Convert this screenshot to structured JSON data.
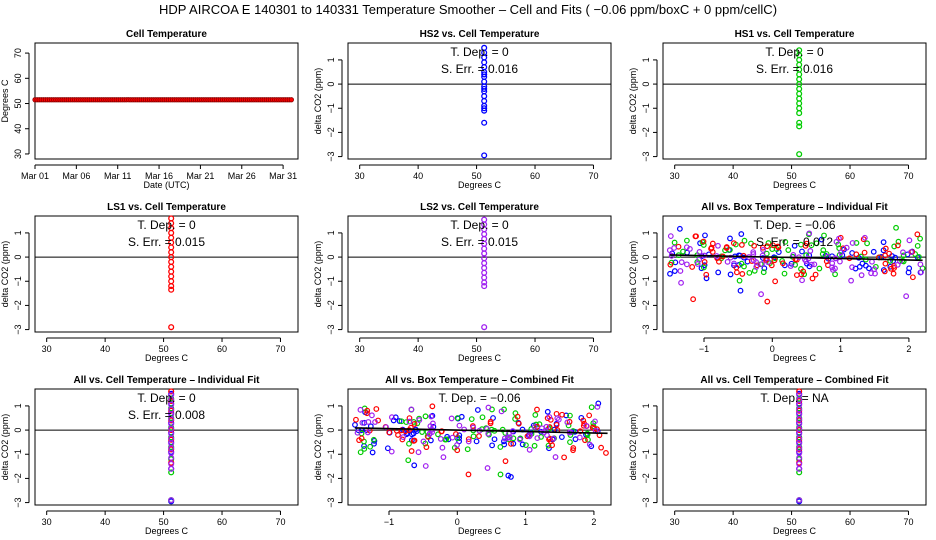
{
  "suptitle": "HDP   AIRCOA E   140301 to 140331   Temperature Smoother – Cell and Fits ( −0.06  ppm/boxC +  0  ppm/cellC)",
  "colors": {
    "red": "#ff0000",
    "blue": "#0000ff",
    "green": "#00cc00",
    "purple": "#a020f0",
    "darkred": "#8b0000"
  },
  "chart_data": [
    {
      "id": "p1",
      "type": "scatter",
      "title": "Cell Temperature",
      "xlabel": "Date (UTC)",
      "ylabel": "Degrees C",
      "xlim": [
        0,
        31.8
      ],
      "ylim": [
        28,
        74
      ],
      "xticks": [
        0,
        5,
        10,
        15,
        20,
        25,
        30
      ],
      "xticklabels": [
        "Mar 01",
        "Mar 06",
        "Mar 11",
        "Mar 16",
        "Mar 21",
        "Mar 26",
        "Mar 31"
      ],
      "yticks": [
        30,
        40,
        50,
        60,
        70
      ],
      "series": [
        {
          "color": "#ff0000",
          "edge": "#8b0000",
          "x_range": [
            0,
            31
          ],
          "y": 51.5,
          "n": 124
        }
      ]
    },
    {
      "id": "p2",
      "type": "scatter",
      "title": "HS2 vs. Cell Temperature",
      "xlabel": "Degrees C",
      "ylabel": "delta CO2 (ppm)",
      "xlim": [
        28,
        73
      ],
      "ylim": [
        -3.1,
        1.7
      ],
      "xticks": [
        30,
        40,
        50,
        60,
        70
      ],
      "yticks": [
        -3,
        -2,
        -1,
        0,
        1
      ],
      "annotations": [
        "T. Dep. =  0",
        "S. Err. =  0.016"
      ],
      "hline": 0,
      "series": [
        {
          "color": "#0000ff",
          "x": 51.3,
          "values": [
            1.5,
            1.3,
            1.1,
            0.9,
            0.7,
            0.5,
            0.3,
            0.1,
            -0.1,
            -0.3,
            -0.5,
            -0.7,
            -0.9,
            -1.1,
            -1.0,
            -0.2,
            0.4,
            -1.6,
            -2.95
          ]
        }
      ]
    },
    {
      "id": "p3",
      "type": "scatter",
      "title": "HS1 vs. Cell Temperature",
      "xlabel": "Degrees C",
      "ylabel": "delta CO2 (ppm)",
      "xlim": [
        28,
        73
      ],
      "ylim": [
        -3.1,
        1.7
      ],
      "xticks": [
        30,
        40,
        50,
        60,
        70
      ],
      "yticks": [
        -3,
        -2,
        -1,
        0,
        1
      ],
      "annotations": [
        "T. Dep. =  0",
        "S. Err. =  0.016"
      ],
      "hline": 0,
      "series": [
        {
          "color": "#00cc00",
          "x": 51.3,
          "values": [
            1.4,
            1.2,
            1.0,
            0.8,
            0.6,
            0.4,
            0.2,
            0.0,
            -0.2,
            -0.4,
            -0.6,
            -0.8,
            -1.0,
            -1.2,
            -1.6,
            -1.75,
            -2.9
          ]
        }
      ]
    },
    {
      "id": "p4",
      "type": "scatter",
      "title": "LS1 vs. Cell Temperature",
      "xlabel": "Degrees C",
      "ylabel": "delta CO2 (ppm)",
      "xlim": [
        28,
        73
      ],
      "ylim": [
        -3.1,
        1.7
      ],
      "xticks": [
        30,
        40,
        50,
        60,
        70
      ],
      "yticks": [
        -3,
        -2,
        -1,
        0,
        1
      ],
      "annotations": [
        "T. Dep. =  0",
        "S. Err. =  0.015"
      ],
      "hline": 0,
      "series": [
        {
          "color": "#ff0000",
          "x": 51.3,
          "values": [
            1.6,
            1.4,
            1.2,
            1.0,
            0.8,
            0.6,
            0.4,
            0.2,
            0.0,
            -0.2,
            -0.4,
            -0.6,
            -0.8,
            -1.0,
            -1.2,
            -1.35,
            -2.9
          ]
        }
      ]
    },
    {
      "id": "p5",
      "type": "scatter",
      "title": "LS2 vs. Cell Temperature",
      "xlabel": "Degrees C",
      "ylabel": "delta CO2 (ppm)",
      "xlim": [
        28,
        73
      ],
      "ylim": [
        -3.1,
        1.7
      ],
      "xticks": [
        30,
        40,
        50,
        60,
        70
      ],
      "yticks": [
        -3,
        -2,
        -1,
        0,
        1
      ],
      "annotations": [
        "T. Dep. =  0",
        "S. Err. =  0.015"
      ],
      "hline": 0,
      "series": [
        {
          "color": "#a020f0",
          "x": 51.3,
          "values": [
            1.55,
            1.35,
            1.15,
            0.95,
            0.75,
            0.55,
            0.35,
            0.15,
            -0.05,
            -0.25,
            -0.45,
            -0.65,
            -0.85,
            -1.05,
            -1.2,
            -2.9
          ]
        }
      ]
    },
    {
      "id": "p6",
      "type": "scatter",
      "title": "All vs. Box Temperature – Individual Fit",
      "xlabel": "Degrees C",
      "ylabel": "delta CO2 (ppm)",
      "xlim": [
        -1.6,
        2.25
      ],
      "ylim": [
        -3.1,
        1.7
      ],
      "xticks": [
        -1,
        0,
        1,
        2
      ],
      "yticks": [
        -3,
        -2,
        -1,
        0,
        1
      ],
      "annotations": [
        "T. Dep. = −0.06",
        "S. Err. =  0.012"
      ],
      "hline": 0,
      "fit_line": {
        "slope": -0.06,
        "intercept": 0,
        "x_range": [
          -1.5,
          2.2
        ]
      },
      "cloud": {
        "x_range": [
          -1.5,
          2.2
        ],
        "y_center": 0.0,
        "spread": 0.45,
        "n_per_series": 70,
        "seed": 11
      },
      "series": [
        {
          "name": "HS2",
          "color": "#0000ff"
        },
        {
          "name": "HS1",
          "color": "#00cc00"
        },
        {
          "name": "LS1",
          "color": "#ff0000"
        },
        {
          "name": "LS2",
          "color": "#a020f0"
        }
      ]
    },
    {
      "id": "p7",
      "type": "scatter",
      "title": "All vs. Cell Temperature – Individual Fit",
      "xlabel": "Degrees C",
      "ylabel": "delta CO2 (ppm)",
      "xlim": [
        28,
        73
      ],
      "ylim": [
        -3.1,
        1.7
      ],
      "xticks": [
        30,
        40,
        50,
        60,
        70
      ],
      "yticks": [
        -3,
        -2,
        -1,
        0,
        1
      ],
      "annotations": [
        "T. Dep. =  0",
        "S. Err. =  0.008"
      ],
      "hline": 0,
      "series": [
        {
          "color": "#0000ff",
          "x": 51.3,
          "values": [
            1.5,
            1.1,
            0.7,
            0.3,
            -0.1,
            -0.5,
            -0.9,
            -1.6,
            -2.95
          ]
        },
        {
          "color": "#00cc00",
          "x": 51.3,
          "values": [
            1.3,
            0.9,
            0.5,
            0.1,
            -0.3,
            -0.7,
            -1.2,
            -1.75,
            -2.9
          ]
        },
        {
          "color": "#ff0000",
          "x": 51.3,
          "values": [
            1.6,
            1.2,
            0.8,
            0.4,
            0.0,
            -0.4,
            -0.8,
            -1.35
          ]
        },
        {
          "color": "#a020f0",
          "x": 51.3,
          "values": [
            1.45,
            1.25,
            1.05,
            0.85,
            0.65,
            0.45,
            0.25,
            0.05,
            -0.15,
            -0.35,
            -0.55,
            -0.75,
            -0.95,
            -1.15,
            -1.4,
            -1.6,
            -2.9
          ]
        }
      ]
    },
    {
      "id": "p8",
      "type": "scatter",
      "title": "All vs. Box Temperature – Combined Fit",
      "xlabel": "Degrees C",
      "ylabel": "delta CO2 (ppm)",
      "xlim": [
        -1.6,
        2.25
      ],
      "ylim": [
        -3.1,
        1.7
      ],
      "xticks": [
        -1,
        0,
        1,
        2
      ],
      "yticks": [
        -3,
        -2,
        -1,
        0,
        1
      ],
      "annotations": [
        "T. Dep. = −0.06"
      ],
      "hline": 0,
      "fit_line": {
        "slope": -0.06,
        "intercept": 0,
        "x_range": [
          -1.5,
          2.2
        ]
      },
      "cloud": {
        "x_range": [
          -1.5,
          2.2
        ],
        "y_center": 0.0,
        "spread": 0.45,
        "n_per_series": 70,
        "seed": 23
      },
      "series": [
        {
          "name": "HS2",
          "color": "#0000ff"
        },
        {
          "name": "HS1",
          "color": "#00cc00"
        },
        {
          "name": "LS1",
          "color": "#ff0000"
        },
        {
          "name": "LS2",
          "color": "#a020f0"
        }
      ]
    },
    {
      "id": "p9",
      "type": "scatter",
      "title": "All vs. Cell Temperature – Combined Fit",
      "xlabel": "Degrees C",
      "ylabel": "delta CO2 (ppm)",
      "xlim": [
        28,
        73
      ],
      "ylim": [
        -3.1,
        1.7
      ],
      "xticks": [
        30,
        40,
        50,
        60,
        70
      ],
      "yticks": [
        -3,
        -2,
        -1,
        0,
        1
      ],
      "annotations": [
        "T. Dep. =  NA"
      ],
      "hline": 0,
      "series": [
        {
          "color": "#0000ff",
          "x": 51.3,
          "values": [
            1.5,
            1.1,
            0.7,
            0.3,
            -0.1,
            -0.5,
            -0.9,
            -1.6,
            -2.95
          ]
        },
        {
          "color": "#00cc00",
          "x": 51.3,
          "values": [
            1.3,
            0.9,
            0.5,
            0.1,
            -0.3,
            -0.7,
            -1.2,
            -1.75,
            -2.9
          ]
        },
        {
          "color": "#ff0000",
          "x": 51.3,
          "values": [
            1.6,
            1.2,
            0.8,
            0.4,
            0.0,
            -0.4,
            -0.8,
            -1.35
          ]
        },
        {
          "color": "#a020f0",
          "x": 51.3,
          "values": [
            1.45,
            1.25,
            1.05,
            0.85,
            0.65,
            0.45,
            0.25,
            0.05,
            -0.15,
            -0.35,
            -0.55,
            -0.75,
            -0.95,
            -1.15,
            -1.4,
            -1.6,
            -2.9
          ]
        }
      ]
    }
  ]
}
